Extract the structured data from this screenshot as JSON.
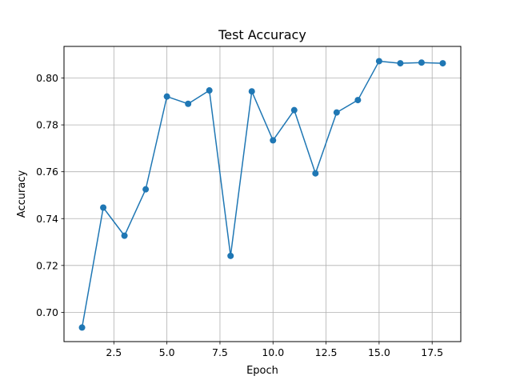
{
  "chart_data": {
    "type": "line",
    "title": "Test Accuracy",
    "xlabel": "Epoch",
    "ylabel": "Accuracy",
    "xlim": [
      0.15,
      18.85
    ],
    "ylim": [
      0.6875,
      0.8135
    ],
    "x_ticks": [
      2.5,
      5.0,
      7.5,
      10.0,
      12.5,
      15.0,
      17.5
    ],
    "x_tick_labels": [
      "2.5",
      "5.0",
      "7.5",
      "10.0",
      "12.5",
      "15.0",
      "17.5"
    ],
    "y_ticks": [
      0.7,
      0.72,
      0.74,
      0.76,
      0.78,
      0.8
    ],
    "y_tick_labels": [
      "0.70",
      "0.72",
      "0.74",
      "0.76",
      "0.78",
      "0.80"
    ],
    "grid": true,
    "series": [
      {
        "color": "#1f77b4",
        "marker": "circle",
        "x": [
          1,
          2,
          3,
          4,
          5,
          6,
          7,
          8,
          9,
          10,
          11,
          12,
          13,
          14,
          15,
          16,
          17,
          18
        ],
        "values": [
          0.6935,
          0.7447,
          0.7327,
          0.7525,
          0.7921,
          0.789,
          0.7947,
          0.7241,
          0.7943,
          0.7734,
          0.7863,
          0.7593,
          0.7853,
          0.7906,
          0.8072,
          0.8063,
          0.8066,
          0.8063
        ]
      }
    ]
  }
}
